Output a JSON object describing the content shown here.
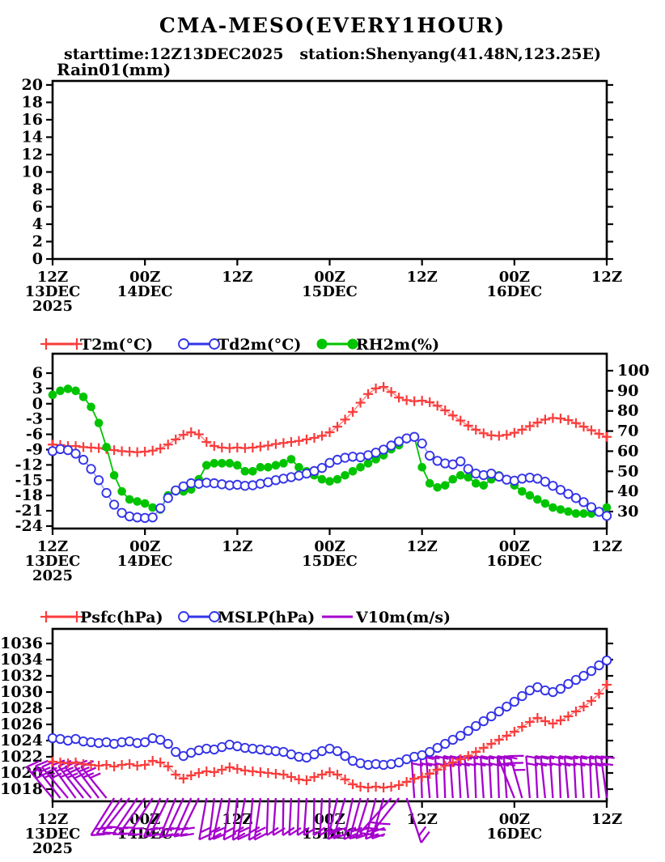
{
  "page": {
    "title": "CMA-MESO(EVERY1HOUR)",
    "subtitle": "starttime:12Z13DEC2025   station:Shenyang(41.48N,123.25E)"
  },
  "colors": {
    "red": "#fa3c3c",
    "red_line": "#f87575",
    "blue": "#3434e8",
    "blue_line": "#8c8cf5",
    "green": "#00c400",
    "purple": "#a500cd",
    "frame": "#000000"
  },
  "axis_x": {
    "ticks": [
      {
        "h": 0,
        "lines": [
          "12Z",
          "13DEC",
          "2025"
        ]
      },
      {
        "h": 12,
        "lines": [
          "00Z",
          "14DEC"
        ]
      },
      {
        "h": 24,
        "lines": [
          "12Z"
        ]
      },
      {
        "h": 36,
        "lines": [
          "00Z",
          "15DEC"
        ]
      },
      {
        "h": 48,
        "lines": [
          "12Z"
        ]
      },
      {
        "h": 60,
        "lines": [
          "00Z",
          "16DEC"
        ]
      },
      {
        "h": 72,
        "lines": [
          "12Z"
        ]
      }
    ]
  },
  "chart_data": [
    {
      "id": "rain",
      "type": "bar",
      "title": "Rain01(mm)",
      "ylim": [
        0,
        20.46
      ],
      "yticks": [
        20,
        18,
        16,
        14,
        12,
        10,
        8,
        6,
        4,
        2,
        0
      ],
      "xlabel_note": "hourly, 12Z13DEC2025 to 12Z16DEC2025",
      "values": []
    },
    {
      "id": "temp",
      "type": "line",
      "left_ylim": [
        -24.48,
        9.81
      ],
      "left_yticks": [
        6,
        3,
        0,
        -3,
        -6,
        -9,
        -12,
        -15,
        -18,
        -21,
        -24
      ],
      "right_ylim": [
        21.55,
        108.45
      ],
      "right_yticks": [
        100,
        90,
        80,
        70,
        60,
        50,
        40,
        30
      ],
      "x_hours_start": 0,
      "series": [
        {
          "name": "T2m(°C)",
          "axis": "left",
          "marker": "plus",
          "color_key": "red",
          "values": [
            -8.0,
            -8.1,
            -8.3,
            -8.3,
            -8.5,
            -8.6,
            -8.7,
            -8.9,
            -9.1,
            -9.3,
            -9.4,
            -9.5,
            -9.4,
            -9.2,
            -8.8,
            -8.0,
            -7.0,
            -6.1,
            -5.6,
            -6.0,
            -7.5,
            -8.3,
            -8.6,
            -8.7,
            -8.6,
            -8.7,
            -8.6,
            -8.4,
            -8.2,
            -7.9,
            -7.7,
            -7.5,
            -7.3,
            -7.0,
            -6.7,
            -6.3,
            -5.6,
            -4.5,
            -3.1,
            -1.6,
            0.2,
            1.9,
            3.0,
            3.3,
            2.3,
            1.2,
            0.7,
            0.5,
            0.6,
            0.3,
            -0.4,
            -1.3,
            -2.3,
            -3.3,
            -4.3,
            -5.1,
            -5.8,
            -6.2,
            -6.3,
            -6.1,
            -5.7,
            -5.1,
            -4.4,
            -3.7,
            -3.1,
            -2.8,
            -2.9,
            -3.2,
            -3.8,
            -4.5,
            -5.2,
            -5.9,
            -6.5
          ]
        },
        {
          "name": "Td2m(°C)",
          "axis": "left",
          "marker": "ocircle",
          "color_key": "blue",
          "values": [
            -9.3,
            -8.9,
            -9.1,
            -9.8,
            -11.0,
            -12.8,
            -15.0,
            -17.5,
            -19.8,
            -21.4,
            -22.1,
            -22.3,
            -22.4,
            -22.3,
            -20.5,
            -18.5,
            -17.0,
            -16.2,
            -15.6,
            -15.7,
            -15.5,
            -15.6,
            -15.8,
            -16.0,
            -15.9,
            -16.1,
            -16.0,
            -15.7,
            -15.4,
            -15.0,
            -14.7,
            -14.4,
            -14.1,
            -13.7,
            -13.2,
            -12.6,
            -11.6,
            -11.0,
            -10.6,
            -10.4,
            -10.5,
            -10.1,
            -9.6,
            -9.0,
            -8.2,
            -7.4,
            -6.8,
            -6.5,
            -7.8,
            -10.2,
            -11.2,
            -11.7,
            -11.9,
            -11.3,
            -12.8,
            -13.7,
            -14.0,
            -13.7,
            -14.3,
            -14.9,
            -15.1,
            -14.7,
            -14.5,
            -14.7,
            -15.3,
            -16.1,
            -16.9,
            -17.7,
            -18.5,
            -19.3,
            -20.3,
            -21.2,
            -22.0
          ]
        },
        {
          "name": "RH2m(%)",
          "axis": "right",
          "marker": "fcircle",
          "color_key": "green",
          "values": [
            88,
            90,
            91,
            90,
            87,
            82,
            74,
            62,
            48,
            40,
            36,
            35,
            34,
            32,
            31,
            38,
            40,
            40,
            41,
            46,
            53,
            54,
            54,
            54,
            53,
            50,
            50,
            52,
            52,
            53,
            54,
            56,
            52,
            50,
            48,
            46,
            45,
            46,
            48,
            50,
            52,
            54,
            56,
            58,
            61,
            63,
            66,
            67,
            52,
            44,
            42,
            43,
            46,
            48,
            47,
            44,
            43,
            46,
            48,
            46,
            43,
            40,
            38,
            36,
            34,
            32,
            31,
            30,
            29,
            29,
            29,
            30,
            32
          ]
        }
      ]
    },
    {
      "id": "pres",
      "type": "line",
      "ylim": [
        1016.5,
        1037.8
      ],
      "yticks": [
        1036,
        1034,
        1032,
        1030,
        1028,
        1026,
        1024,
        1022,
        1020,
        1018
      ],
      "series": [
        {
          "name": "Psfc(hPa)",
          "marker": "plus",
          "color_key": "red",
          "values": [
            1021.4,
            1021.3,
            1021.2,
            1021.3,
            1021.1,
            1021.0,
            1020.9,
            1021.0,
            1020.8,
            1021.0,
            1021.1,
            1020.9,
            1021.0,
            1021.5,
            1021.3,
            1020.8,
            1019.8,
            1019.3,
            1019.7,
            1020.0,
            1020.2,
            1020.1,
            1020.4,
            1020.7,
            1020.5,
            1020.3,
            1020.2,
            1020.1,
            1020.0,
            1019.9,
            1019.8,
            1019.5,
            1019.2,
            1019.1,
            1019.5,
            1019.8,
            1020.1,
            1019.8,
            1019.2,
            1018.6,
            1018.3,
            1018.2,
            1018.3,
            1018.2,
            1018.3,
            1018.5,
            1018.9,
            1019.3,
            1019.5,
            1019.9,
            1020.4,
            1020.9,
            1021.3,
            1021.7,
            1022.1,
            1022.6,
            1023.1,
            1023.6,
            1024.1,
            1024.6,
            1025.1,
            1025.7,
            1026.3,
            1026.8,
            1026.4,
            1026.1,
            1026.5,
            1027.0,
            1027.6,
            1028.2,
            1028.9,
            1029.8,
            1030.9
          ]
        },
        {
          "name": "MSLP(hPa)",
          "marker": "ocircle",
          "color_key": "blue",
          "values": [
            1024.3,
            1024.2,
            1024.0,
            1024.2,
            1023.9,
            1023.8,
            1023.7,
            1023.8,
            1023.6,
            1023.8,
            1023.9,
            1023.7,
            1023.8,
            1024.3,
            1024.1,
            1023.6,
            1022.6,
            1022.1,
            1022.5,
            1022.8,
            1023.0,
            1022.9,
            1023.2,
            1023.5,
            1023.3,
            1023.1,
            1023.0,
            1022.9,
            1022.8,
            1022.7,
            1022.6,
            1022.3,
            1022.0,
            1021.9,
            1022.3,
            1022.7,
            1023.0,
            1022.7,
            1022.1,
            1021.5,
            1021.2,
            1021.0,
            1021.1,
            1021.0,
            1021.1,
            1021.3,
            1021.7,
            1022.0,
            1022.2,
            1022.6,
            1023.1,
            1023.6,
            1024.1,
            1024.6,
            1025.2,
            1025.8,
            1026.4,
            1027.0,
            1027.6,
            1028.2,
            1028.8,
            1029.5,
            1030.2,
            1030.6,
            1030.2,
            1030.0,
            1030.4,
            1031.0,
            1031.5,
            1032.0,
            1032.6,
            1033.3,
            1033.9
          ]
        }
      ],
      "wind_name": "V10m(m/s)",
      "wind_barbs_angle_ticks_len": [
        [
          -40,
          3,
          50
        ],
        [
          -38,
          3,
          50
        ],
        [
          -40,
          3,
          50
        ],
        [
          -36,
          3,
          50
        ],
        [
          -38,
          3,
          50
        ],
        [
          -40,
          3,
          50
        ],
        [
          -37,
          3,
          50
        ],
        [
          -39,
          3,
          50
        ],
        [
          212,
          2,
          54
        ],
        [
          215,
          2,
          54
        ],
        [
          218,
          2,
          54
        ],
        [
          214,
          2,
          54
        ],
        [
          216,
          2,
          54
        ],
        [
          213,
          2,
          54
        ],
        [
          203,
          2,
          52
        ],
        [
          206,
          2,
          52
        ],
        [
          202,
          2,
          52
        ],
        [
          205,
          2,
          52
        ],
        [
          204,
          2,
          52
        ],
        [
          206,
          2,
          52
        ],
        [
          190,
          2,
          52
        ],
        [
          187,
          2,
          52
        ],
        [
          192,
          2,
          52
        ],
        [
          188,
          2,
          52
        ],
        [
          186,
          2,
          52
        ],
        [
          190,
          2,
          52
        ],
        [
          185,
          2,
          52
        ],
        [
          188,
          2,
          52
        ],
        [
          182,
          1,
          46
        ],
        [
          184,
          1,
          46
        ],
        [
          181,
          1,
          46
        ],
        [
          183,
          1,
          46
        ],
        [
          182,
          1,
          46
        ],
        [
          184,
          1,
          46
        ],
        [
          181,
          1,
          46
        ],
        [
          183,
          1,
          46
        ],
        [
          182,
          1,
          46
        ],
        [
          193,
          2,
          52
        ],
        [
          196,
          2,
          52
        ],
        [
          192,
          2,
          52
        ],
        [
          195,
          2,
          52
        ],
        [
          197,
          2,
          52
        ],
        [
          194,
          2,
          52
        ],
        [
          196,
          2,
          52
        ],
        [
          222,
          3,
          58
        ],
        [
          218,
          3,
          58
        ],
        [
          162,
          2,
          58
        ],
        [
          -4,
          2,
          52
        ],
        [
          -2,
          2,
          52
        ],
        [
          -5,
          2,
          52
        ],
        [
          -3,
          2,
          52
        ],
        [
          -2,
          2,
          52
        ],
        [
          -4,
          2,
          52
        ],
        [
          -3,
          2,
          52
        ],
        [
          -5,
          2,
          52
        ],
        [
          -2,
          2,
          52
        ],
        [
          -4,
          2,
          52
        ],
        [
          -3,
          2,
          52
        ],
        [
          -2,
          2,
          52
        ],
        [
          -4,
          2,
          52
        ],
        [
          -22,
          2,
          54
        ],
        [
          -16,
          3,
          54
        ],
        [
          -5,
          2,
          52
        ],
        [
          -3,
          2,
          52
        ],
        [
          -6,
          2,
          52
        ],
        [
          -4,
          2,
          52
        ],
        [
          -2,
          2,
          52
        ],
        [
          -5,
          2,
          52
        ],
        [
          -3,
          2,
          52
        ],
        [
          -4,
          2,
          52
        ],
        [
          -2,
          2,
          52
        ],
        [
          -5,
          2,
          52
        ],
        [
          -8,
          2,
          52
        ]
      ]
    }
  ]
}
